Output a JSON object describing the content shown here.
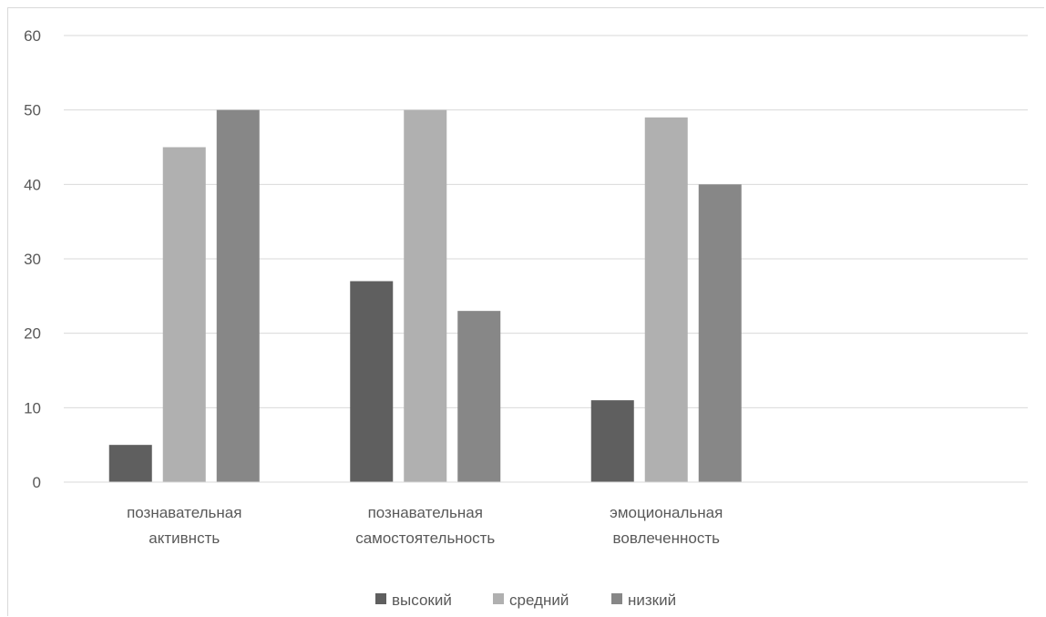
{
  "chart_data": {
    "type": "bar",
    "title": "",
    "xlabel": "",
    "ylabel": "",
    "categories": [
      [
        "познавательная",
        "активнсть"
      ],
      [
        "познавательная",
        "самостоятельность"
      ],
      [
        "эмоциональная",
        "вовлеченность"
      ]
    ],
    "series": [
      {
        "name": "высокий",
        "color": "#5f5f5f",
        "values": [
          5,
          27,
          11
        ]
      },
      {
        "name": "средний",
        "color": "#b0b0b0",
        "values": [
          45,
          50,
          49
        ]
      },
      {
        "name": "низкий",
        "color": "#878787",
        "values": [
          50,
          23,
          40
        ]
      }
    ],
    "ylim": [
      0,
      60
    ],
    "yticks": [
      0,
      10,
      20,
      30,
      40,
      50,
      60
    ],
    "grid": true,
    "legend_position": "bottom"
  }
}
